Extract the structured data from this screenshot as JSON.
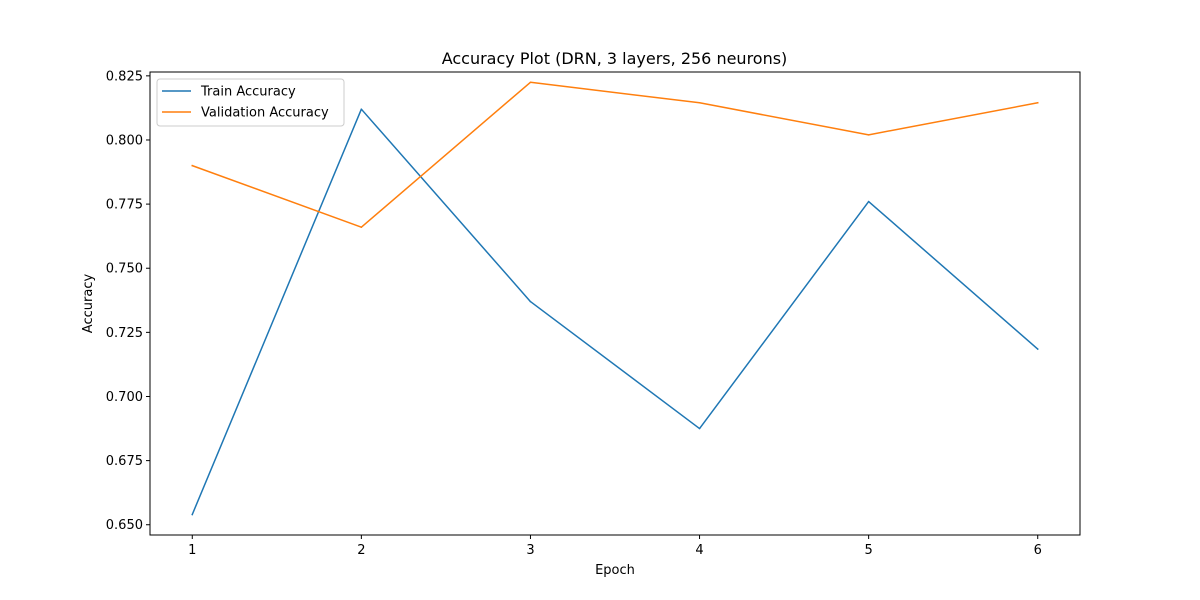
{
  "chart_data": {
    "type": "line",
    "title": "Accuracy Plot (DRN, 3 layers, 256 neurons)",
    "xlabel": "Epoch",
    "ylabel": "Accuracy",
    "x": [
      1,
      2,
      3,
      4,
      5,
      6
    ],
    "xticks": [
      "1",
      "2",
      "3",
      "4",
      "5",
      "6"
    ],
    "yticks": [
      "0.650",
      "0.675",
      "0.700",
      "0.725",
      "0.750",
      "0.775",
      "0.800",
      "0.825"
    ],
    "ytick_values": [
      0.65,
      0.675,
      0.7,
      0.725,
      0.75,
      0.775,
      0.8,
      0.825
    ],
    "xlim": [
      0.75,
      6.25
    ],
    "ylim": [
      0.646,
      0.8265
    ],
    "grid": false,
    "legend_position": "upper-left",
    "series": [
      {
        "name": "Train Accuracy",
        "color": "#1f77b4",
        "values": [
          0.654,
          0.812,
          0.737,
          0.6875,
          0.776,
          0.7185
        ]
      },
      {
        "name": "Validation Accuracy",
        "color": "#ff7f0e",
        "values": [
          0.79,
          0.766,
          0.8225,
          0.8145,
          0.802,
          0.8145
        ]
      }
    ]
  }
}
